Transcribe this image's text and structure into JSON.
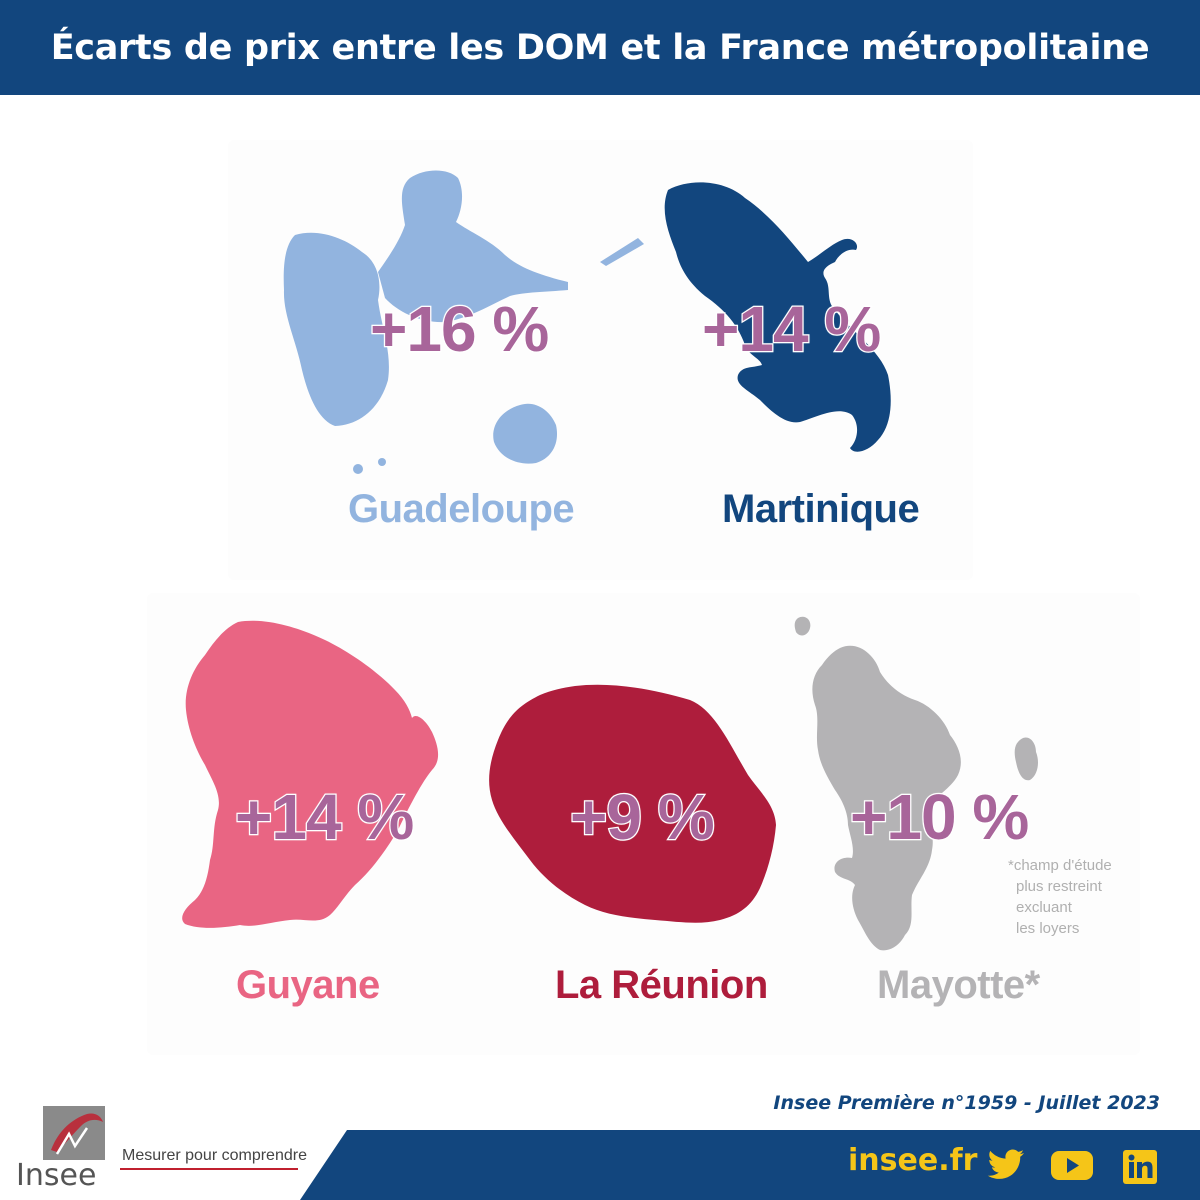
{
  "title": "Écarts de prix entre les DOM et la France métropolitaine",
  "regions": [
    {
      "name": "Guadeloupe",
      "value": "+16 %",
      "color": "#92b4df"
    },
    {
      "name": "Martinique",
      "value": "+14 %",
      "color": "#12467e"
    },
    {
      "name": "Guyane",
      "value": "+14 %",
      "color": "#e96583"
    },
    {
      "name": "La Réunion",
      "value": "+9 %",
      "color": "#ae1d3c"
    },
    {
      "name": "Mayotte*",
      "value": "+10 %",
      "color": "#b4b3b5"
    }
  ],
  "value_color": "#a8659a",
  "footnote": [
    "*champ d'étude",
    "plus restreint",
    "excluant",
    "les loyers"
  ],
  "source": "Insee Première n°1959 - Juillet 2023",
  "footer": {
    "website": "insee.fr",
    "social_icons": [
      "twitter-icon",
      "youtube-icon",
      "linkedin-icon"
    ],
    "logo_text": "Insee",
    "tagline": "Mesurer pour comprendre"
  },
  "colors": {
    "brand_blue": "#12467e",
    "accent_yellow": "#f5c518"
  }
}
